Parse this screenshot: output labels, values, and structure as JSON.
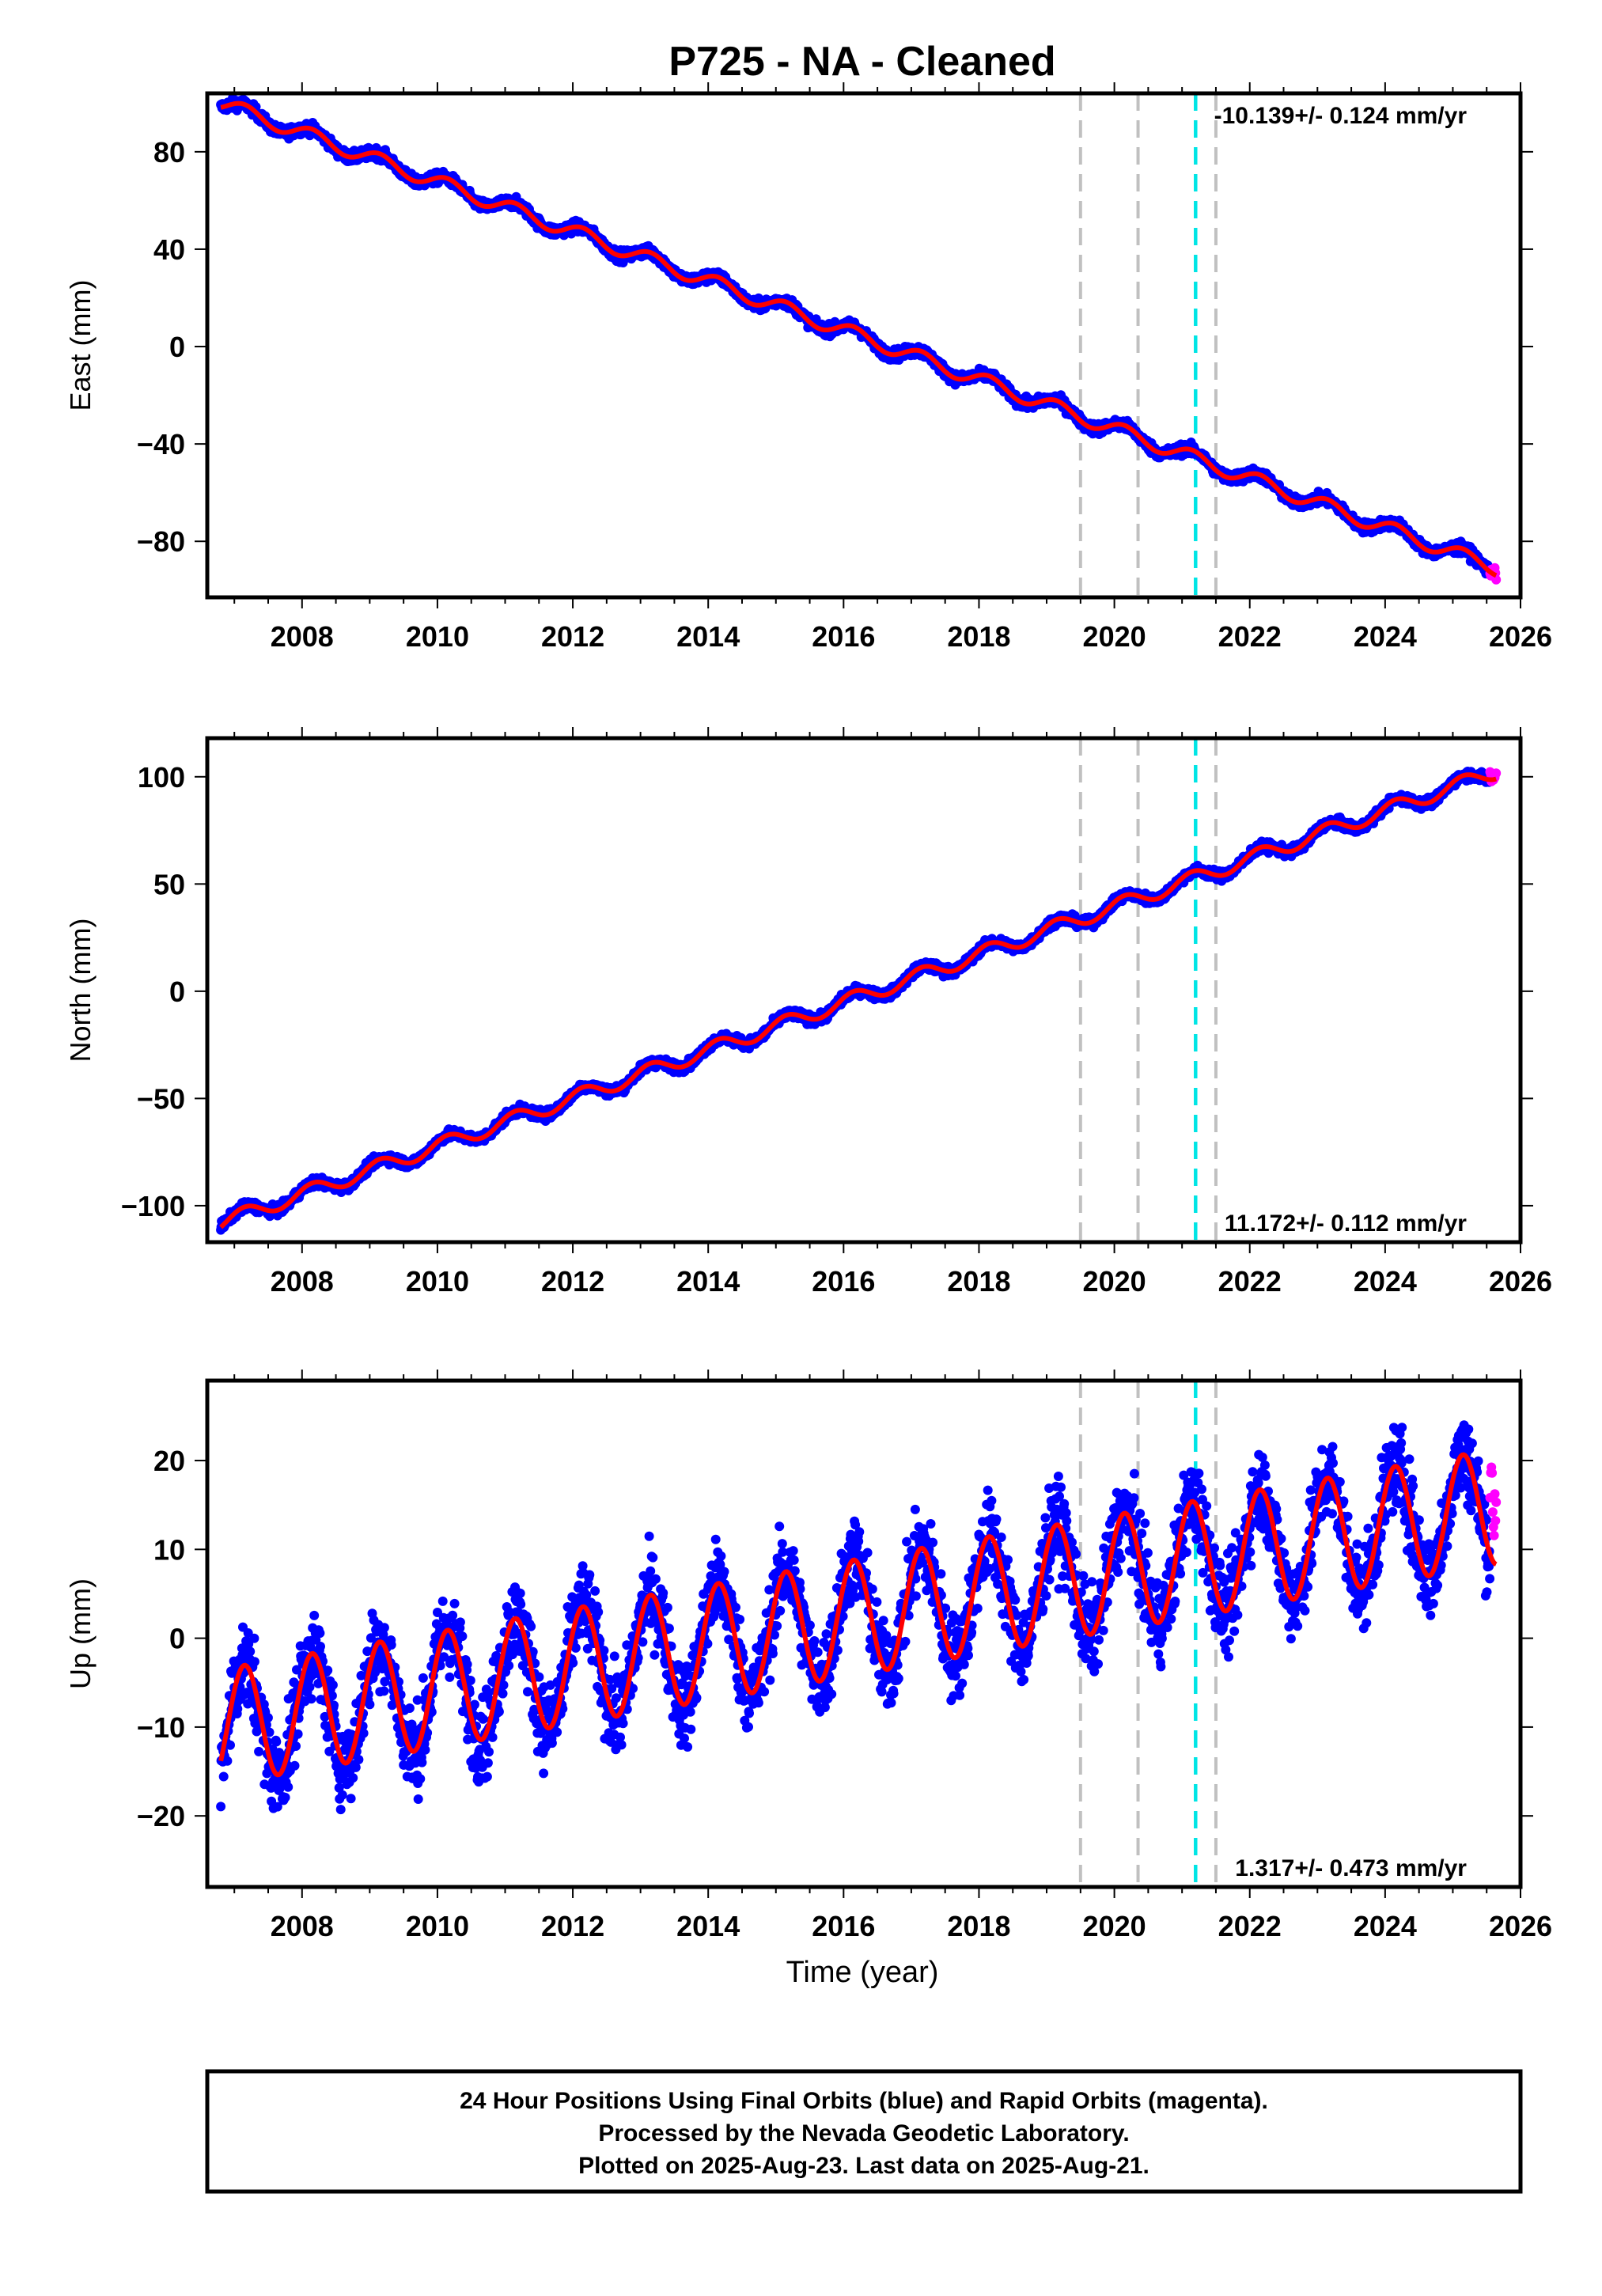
{
  "title": "P725  - NA - Cleaned",
  "xlabel": "Time (year)",
  "colors": {
    "final": "#0000ff",
    "rapid": "#ff00ff",
    "model": "#ff0000",
    "event_gray": "#c0c0c0",
    "event_cyan": "#00e5e5"
  },
  "footer": {
    "line1": "24 Hour Positions Using Final Orbits (blue) and Rapid Orbits (magenta).",
    "line2": "Processed by the Nevada Geodetic Laboratory.",
    "line3": "Plotted on 2025-Aug-23. Last data on 2025-Aug-21."
  },
  "chart_data": [
    {
      "type": "scatter",
      "ylabel": "East (mm)",
      "rate_label": "-10.139+/- 0.124 mm/yr",
      "rate_position": "top-right",
      "xlim": [
        2006.6,
        2026.0
      ],
      "ylim": [
        -103,
        104
      ],
      "xticks": [
        2008,
        2010,
        2012,
        2014,
        2016,
        2018,
        2020,
        2022,
        2024,
        2026
      ],
      "yticks": [
        -80,
        -40,
        0,
        40,
        80
      ],
      "start": 2006.8,
      "end": 2025.64,
      "trend_mm_per_yr": -10.139,
      "value_at_start": 100,
      "annual_amplitude_mm": 3,
      "scatter_mm": 1.6,
      "gray_lines": [
        2019.5,
        2020.35,
        2021.5
      ],
      "cyan_lines": [
        2021.2
      ],
      "series": [
        {
          "name": "Final Orbits (blue)",
          "x_range": [
            2006.8,
            2025.55
          ]
        },
        {
          "name": "Rapid Orbits (magenta)",
          "x_range": [
            2025.55,
            2025.64
          ]
        }
      ]
    },
    {
      "type": "scatter",
      "ylabel": "North (mm)",
      "rate_label": "11.172+/- 0.112 mm/yr",
      "rate_position": "bottom-right",
      "xlim": [
        2006.6,
        2026.0
      ],
      "ylim": [
        -117,
        118
      ],
      "xticks": [
        2008,
        2010,
        2012,
        2014,
        2016,
        2018,
        2020,
        2022,
        2024,
        2026
      ],
      "yticks": [
        -100,
        -50,
        0,
        50,
        100
      ],
      "start": 2006.8,
      "end": 2025.64,
      "trend_mm_per_yr": 11.172,
      "value_at_start": -108,
      "annual_amplitude_mm": 3.5,
      "scatter_mm": 1.6,
      "gray_lines": [
        2019.5,
        2020.35,
        2021.5
      ],
      "cyan_lines": [
        2021.2
      ],
      "series": [
        {
          "name": "Final Orbits (blue)",
          "x_range": [
            2006.8,
            2025.55
          ]
        },
        {
          "name": "Rapid Orbits (magenta)",
          "x_range": [
            2025.55,
            2025.64
          ]
        }
      ]
    },
    {
      "type": "scatter",
      "ylabel": "Up (mm)",
      "rate_label": "1.317+/- 0.473 mm/yr",
      "rate_position": "bottom-right",
      "xlim": [
        2006.6,
        2026.0
      ],
      "ylim": [
        -28,
        29
      ],
      "xticks": [
        2008,
        2010,
        2012,
        2014,
        2016,
        2018,
        2020,
        2022,
        2024,
        2026
      ],
      "yticks": [
        -20,
        -10,
        0,
        10,
        20
      ],
      "start": 2006.8,
      "end": 2025.64,
      "trend_mm_per_yr": 1.317,
      "value_at_start": -10,
      "annual_amplitude_mm": 6.5,
      "scatter_mm": 3.4,
      "gray_lines": [
        2019.5,
        2020.35,
        2021.5
      ],
      "cyan_lines": [
        2021.2
      ],
      "series": [
        {
          "name": "Final Orbits (blue)",
          "x_range": [
            2006.8,
            2025.55
          ]
        },
        {
          "name": "Rapid Orbits (magenta)",
          "x_range": [
            2025.55,
            2025.64
          ]
        }
      ]
    }
  ]
}
